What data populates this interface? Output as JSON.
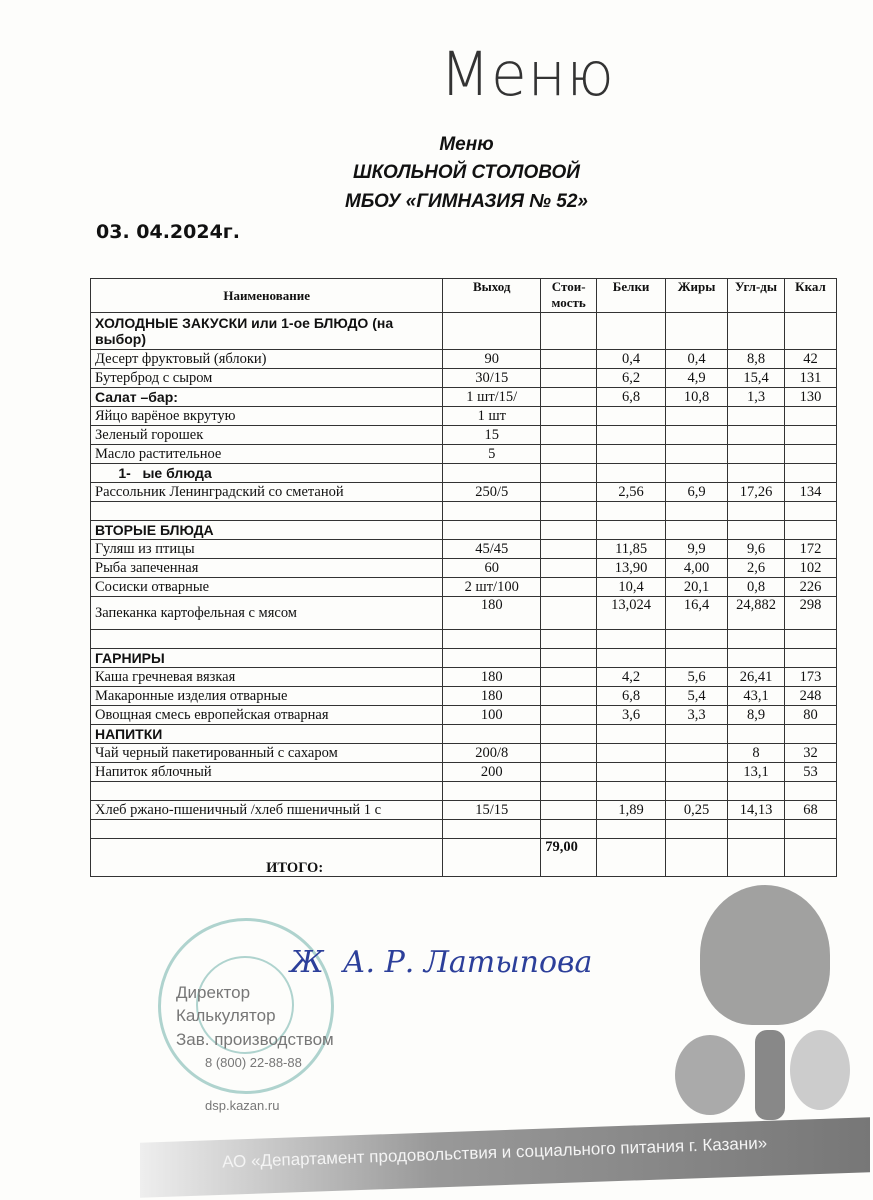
{
  "handwritten_title": "Меню",
  "title_line1": "Меню",
  "title_line2": "ШКОЛЬНОЙ СТОЛОВОЙ",
  "title_line3": "МБОУ «ГИМНАЗИЯ № 52»",
  "date": "03. 04.2024г.",
  "table": {
    "headers": [
      "Наименование",
      "Выход",
      "Стои-мость",
      "Белки",
      "Жиры",
      "Угл-ды",
      "Ккал"
    ],
    "rows": [
      {
        "type": "section",
        "name": "ХОЛОДНЫЕ ЗАКУСКИ или 1-ое БЛЮДО (на выбор)",
        "cells": [
          "",
          "",
          "",
          "",
          "",
          ""
        ]
      },
      {
        "type": "item",
        "name": "Десерт фруктовый (яблоки)",
        "cells": [
          "90",
          "",
          "0,4",
          "0,4",
          "8,8",
          "42"
        ]
      },
      {
        "type": "item",
        "name": "Бутерброд с сыром",
        "cells": [
          "30/15",
          "",
          "6,2",
          "4,9",
          "15,4",
          "131"
        ]
      },
      {
        "type": "section",
        "name": "Салат –бар:",
        "cells": [
          "1 шт/15/",
          "",
          "6,8",
          "10,8",
          "1,3",
          "130"
        ]
      },
      {
        "type": "item",
        "name": "Яйцо варёное вкрутую",
        "cells": [
          "1 шт",
          "",
          "",
          "",
          "",
          ""
        ]
      },
      {
        "type": "item",
        "name": "Зеленый горошек",
        "cells": [
          "15",
          "",
          "",
          "",
          "",
          ""
        ]
      },
      {
        "type": "item",
        "name": "Масло растительное",
        "cells": [
          "5",
          "",
          "",
          "",
          "",
          ""
        ]
      },
      {
        "type": "section",
        "name": "      1-   ые блюда",
        "cells": [
          "",
          "",
          "",
          "",
          "",
          ""
        ]
      },
      {
        "type": "item",
        "name": "Рассольник Ленинградский со сметаной",
        "cells": [
          "250/5",
          "",
          "2,56",
          "6,9",
          "17,26",
          "134"
        ]
      },
      {
        "type": "empty",
        "name": "",
        "cells": [
          "",
          "",
          "",
          "",
          "",
          ""
        ]
      },
      {
        "type": "section",
        "name": "ВТОРЫЕ БЛЮДА",
        "cells": [
          "",
          "",
          "",
          "",
          "",
          ""
        ]
      },
      {
        "type": "item",
        "name": "Гуляш из птицы",
        "cells": [
          "45/45",
          "",
          "11,85",
          "9,9",
          "9,6",
          "172"
        ]
      },
      {
        "type": "item",
        "name": "Рыба запеченная",
        "cells": [
          "60",
          "",
          "13,90",
          "4,00",
          "2,6",
          "102"
        ]
      },
      {
        "type": "item",
        "name": "Сосиски отварные",
        "cells": [
          "2 шт/100",
          "",
          "10,4",
          "20,1",
          "0,8",
          "226"
        ]
      },
      {
        "type": "tall",
        "name": "Запеканка картофельная с мясом",
        "cells": [
          "180",
          "",
          "13,024",
          "16,4",
          "24,882",
          "298"
        ]
      },
      {
        "type": "empty",
        "name": "",
        "cells": [
          "",
          "",
          "",
          "",
          "",
          ""
        ]
      },
      {
        "type": "section",
        "name": "ГАРНИРЫ",
        "cells": [
          "",
          "",
          "",
          "",
          "",
          ""
        ]
      },
      {
        "type": "item",
        "name": "Каша гречневая вязкая",
        "cells": [
          "180",
          "",
          "4,2",
          "5,6",
          "26,41",
          "173"
        ]
      },
      {
        "type": "item",
        "name": "Макаронные изделия отварные",
        "cells": [
          "180",
          "",
          "6,8",
          "5,4",
          "43,1",
          "248"
        ]
      },
      {
        "type": "item",
        "name": "Овощная смесь европейская отварная",
        "cells": [
          "100",
          "",
          "3,6",
          "3,3",
          "8,9",
          "80"
        ]
      },
      {
        "type": "section",
        "name": "НАПИТКИ",
        "cells": [
          "",
          "",
          "",
          "",
          "",
          ""
        ]
      },
      {
        "type": "item",
        "name": "Чай черный пакетированный с сахаром",
        "cells": [
          "200/8",
          "",
          "",
          "",
          "8",
          "32"
        ]
      },
      {
        "type": "item",
        "name": "Напиток яблочный",
        "cells": [
          "200",
          "",
          "",
          "",
          "13,1",
          "53"
        ]
      },
      {
        "type": "empty",
        "name": "",
        "cells": [
          "",
          "",
          "",
          "",
          "",
          ""
        ]
      },
      {
        "type": "item",
        "name": "Хлеб ржано-пшеничный /хлеб пшеничный 1 с",
        "cells": [
          "15/15",
          "",
          "1,89",
          "0,25",
          "14,13",
          "68"
        ]
      },
      {
        "type": "empty",
        "name": "",
        "cells": [
          "",
          "",
          "",
          "",
          "",
          ""
        ]
      }
    ],
    "total_label": "ИТОГО:",
    "total_cost": "79,00"
  },
  "footer": {
    "signature": "А. Р. Латыпова",
    "lines": [
      "Директор",
      "Калькулятор",
      "Зав. производством",
      "8 (800) 22-88-88",
      "dsp.kazan.ru"
    ],
    "department": "АО «Департамент продовольствия и социального питания г. Казани»"
  },
  "colors": {
    "stamp": "#9cc9c4",
    "signature": "#2c3f9a"
  }
}
